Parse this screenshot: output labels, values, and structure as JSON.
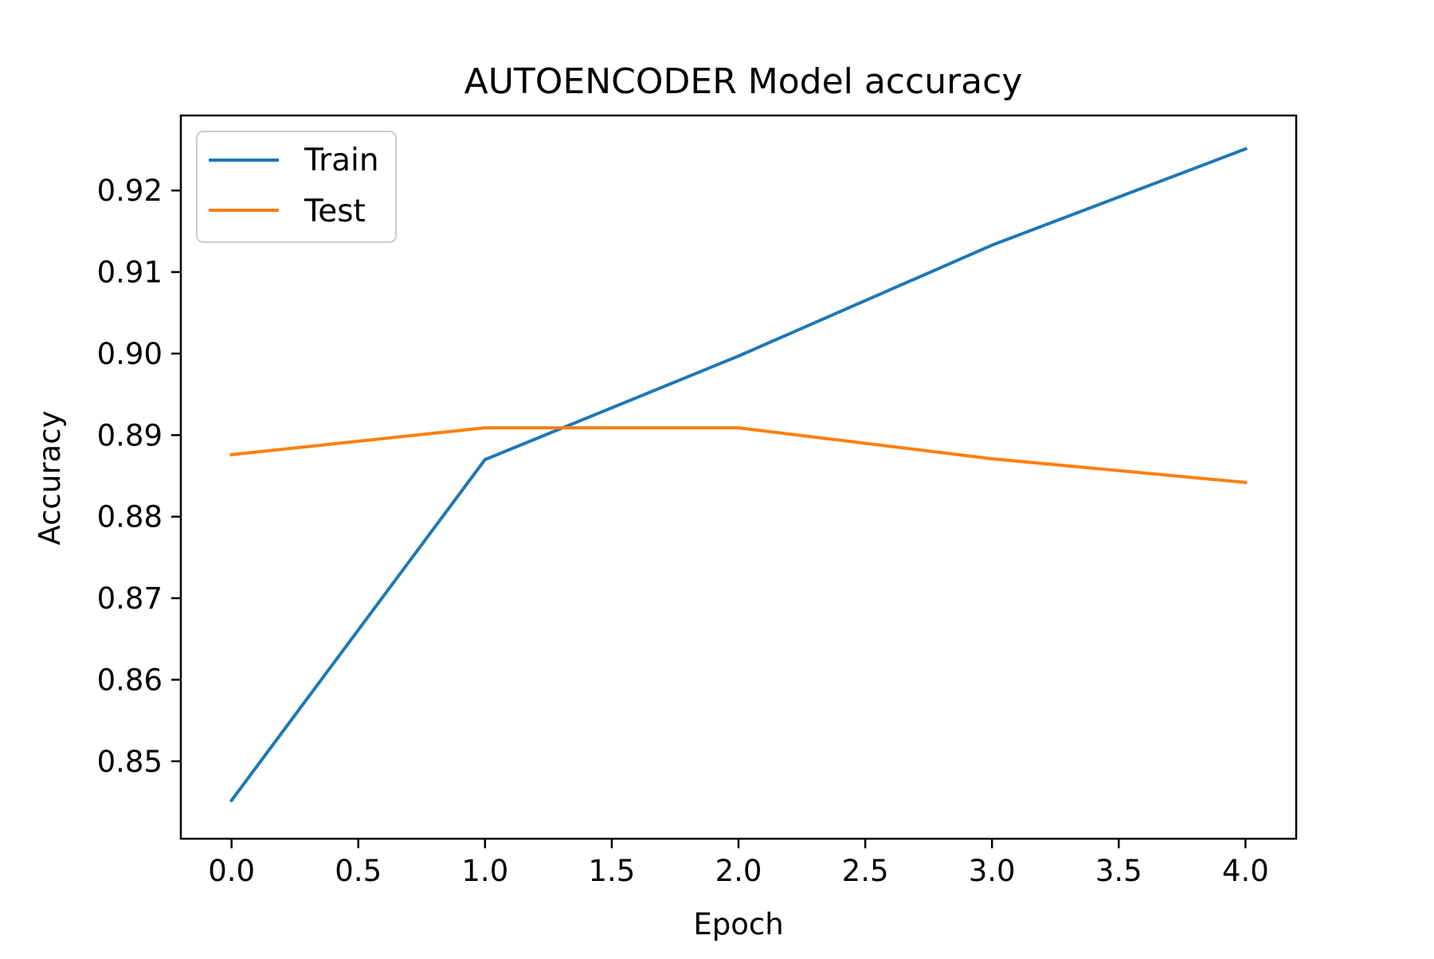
{
  "chart_data": {
    "type": "line",
    "title": "AUTOENCODER Model accuracy",
    "xlabel": "Epoch",
    "ylabel": "Accuracy",
    "x": [
      0,
      1,
      2,
      3,
      4
    ],
    "xlim": [
      -0.2,
      4.2
    ],
    "ylim": [
      0.8405,
      0.9292
    ],
    "xticks": [
      0.0,
      0.5,
      1.0,
      1.5,
      2.0,
      2.5,
      3.0,
      3.5,
      4.0
    ],
    "xtick_labels": [
      "0.0",
      "0.5",
      "1.0",
      "1.5",
      "2.0",
      "2.5",
      "3.0",
      "3.5",
      "4.0"
    ],
    "yticks": [
      0.85,
      0.86,
      0.87,
      0.88,
      0.89,
      0.9,
      0.91,
      0.92
    ],
    "ytick_labels": [
      "0.85",
      "0.86",
      "0.87",
      "0.88",
      "0.89",
      "0.90",
      "0.91",
      "0.92"
    ],
    "series": [
      {
        "name": "Train",
        "color": "#1f77b4",
        "values": [
          0.8452,
          0.887,
          0.8997,
          0.9133,
          0.9251
        ]
      },
      {
        "name": "Test",
        "color": "#ff7f0e",
        "values": [
          0.8876,
          0.8909,
          0.8909,
          0.8871,
          0.8842
        ]
      }
    ],
    "grid": false,
    "legend_position": "upper left"
  }
}
